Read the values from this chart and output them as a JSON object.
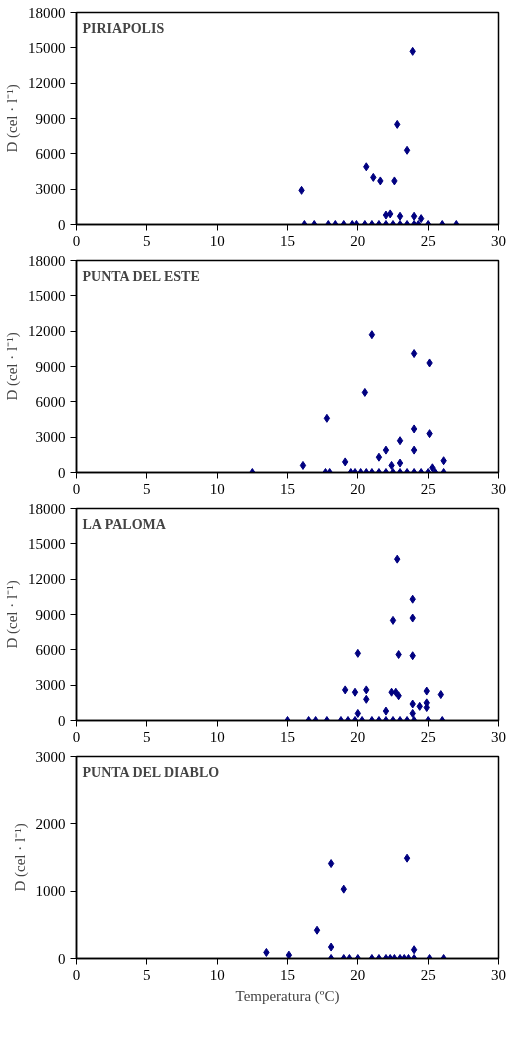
{
  "chart_data": [
    {
      "type": "scatter",
      "title": "PIRIAPOLIS",
      "ylabel": "D (cel · l⁻¹)",
      "xlim": [
        0,
        30
      ],
      "xticks": [
        0,
        5,
        10,
        15,
        20,
        25,
        30
      ],
      "ylim": [
        0,
        18000
      ],
      "yticks": [
        0,
        3000,
        6000,
        9000,
        12000,
        15000,
        18000
      ],
      "marker": "diamond",
      "grid": false,
      "tick_labels": true,
      "series": [
        {
          "color": "#000080",
          "x": [
            16.0,
            20.6,
            21.1,
            21.6,
            22.6,
            22.8,
            23.5,
            23.9,
            22.0,
            22.3,
            23.0,
            24.0,
            24.5,
            16.2,
            16.9,
            17.9,
            18.4,
            19.0,
            19.6,
            19.9,
            20.5,
            21.0,
            21.5,
            22.0,
            22.5,
            23.0,
            23.5,
            24.0,
            24.3,
            25.0,
            26.0,
            27.0
          ],
          "values": [
            2900,
            4900,
            4000,
            3700,
            3700,
            8500,
            6300,
            14700,
            800,
            900,
            700,
            700,
            500,
            0,
            0,
            0,
            0,
            0,
            0,
            0,
            0,
            0,
            0,
            0,
            0,
            0,
            0,
            0,
            0,
            0,
            0,
            0
          ]
        }
      ]
    },
    {
      "type": "scatter",
      "title": "PUNTA DEL ESTE",
      "ylabel": "D (cel · l⁻¹)",
      "xlim": [
        0,
        30
      ],
      "xticks": [
        0,
        5,
        10,
        15,
        20,
        25,
        30
      ],
      "ylim": [
        0,
        18000
      ],
      "yticks": [
        0,
        3000,
        6000,
        9000,
        12000,
        15000,
        18000
      ],
      "marker": "diamond",
      "grid": false,
      "tick_labels": true,
      "series": [
        {
          "color": "#000080",
          "x": [
            21.0,
            24.0,
            25.1,
            20.5,
            17.8,
            24.0,
            25.1,
            23.0,
            24.0,
            22.0,
            21.5,
            19.1,
            16.1,
            23.0,
            26.1,
            22.4,
            25.3,
            12.5,
            17.7,
            18.0,
            19.5,
            19.8,
            20.2,
            20.6,
            21.0,
            21.5,
            22.0,
            22.5,
            23.0,
            23.5,
            24.0,
            24.5,
            25.0,
            25.5,
            26.1
          ],
          "values": [
            11700,
            10100,
            9300,
            6800,
            4600,
            3700,
            3300,
            2700,
            1900,
            1900,
            1300,
            900,
            600,
            800,
            1000,
            600,
            400,
            0,
            0,
            0,
            0,
            0,
            0,
            0,
            0,
            0,
            0,
            0,
            0,
            0,
            0,
            0,
            0,
            0,
            0
          ]
        }
      ]
    },
    {
      "type": "scatter",
      "title": "LA PALOMA",
      "ylabel": "D (cel · l⁻¹)",
      "xlim": [
        0,
        30
      ],
      "xticks": [
        0,
        5,
        10,
        15,
        20,
        25,
        30
      ],
      "ylim": [
        0,
        18000
      ],
      "yticks": [
        0,
        3000,
        6000,
        9000,
        12000,
        15000,
        18000
      ],
      "marker": "diamond",
      "grid": false,
      "tick_labels": true,
      "series": [
        {
          "color": "#000080",
          "x": [
            22.8,
            23.9,
            23.9,
            22.5,
            20.0,
            22.9,
            23.9,
            19.1,
            19.8,
            20.6,
            20.6,
            22.4,
            22.7,
            22.9,
            23.9,
            24.4,
            24.9,
            24.9,
            24.9,
            25.9,
            22.0,
            20.0,
            23.9,
            15.0,
            16.5,
            17.0,
            17.8,
            18.8,
            19.3,
            19.8,
            20.3,
            21.0,
            21.5,
            22.0,
            22.5,
            23.0,
            23.5,
            24.0,
            25.0,
            26.0
          ],
          "values": [
            13700,
            10300,
            8700,
            8500,
            5700,
            5600,
            5500,
            2600,
            2400,
            2600,
            1800,
            2400,
            2400,
            2100,
            1400,
            1200,
            2500,
            1500,
            1100,
            2200,
            800,
            600,
            600,
            0,
            0,
            0,
            0,
            0,
            0,
            0,
            0,
            0,
            0,
            0,
            0,
            0,
            0,
            0,
            0,
            0
          ]
        }
      ]
    },
    {
      "type": "scatter",
      "title": "PUNTA DEL DIABLO",
      "ylabel": "D (cel · l⁻¹)",
      "xlabel": "Temperatura (ºC)",
      "xlim": [
        0,
        30
      ],
      "xticks": [
        0,
        5,
        10,
        15,
        20,
        25,
        30
      ],
      "ylim": [
        0,
        3000
      ],
      "yticks": [
        0,
        1000,
        2000,
        3000
      ],
      "marker": "diamond",
      "grid": false,
      "tick_labels": true,
      "series": [
        {
          "color": "#000080",
          "x": [
            13.5,
            15.1,
            17.1,
            18.1,
            19.0,
            18.1,
            23.5,
            24.0,
            18.1,
            19.0,
            19.4,
            20.0,
            21.0,
            21.5,
            22.0,
            22.3,
            22.6,
            23.0,
            23.3,
            23.6,
            24.0,
            25.1,
            26.1
          ],
          "values": [
            90,
            50,
            420,
            1410,
            1030,
            170,
            1490,
            130,
            0,
            0,
            0,
            0,
            0,
            0,
            0,
            0,
            0,
            0,
            0,
            0,
            0,
            0,
            0
          ]
        }
      ]
    }
  ]
}
